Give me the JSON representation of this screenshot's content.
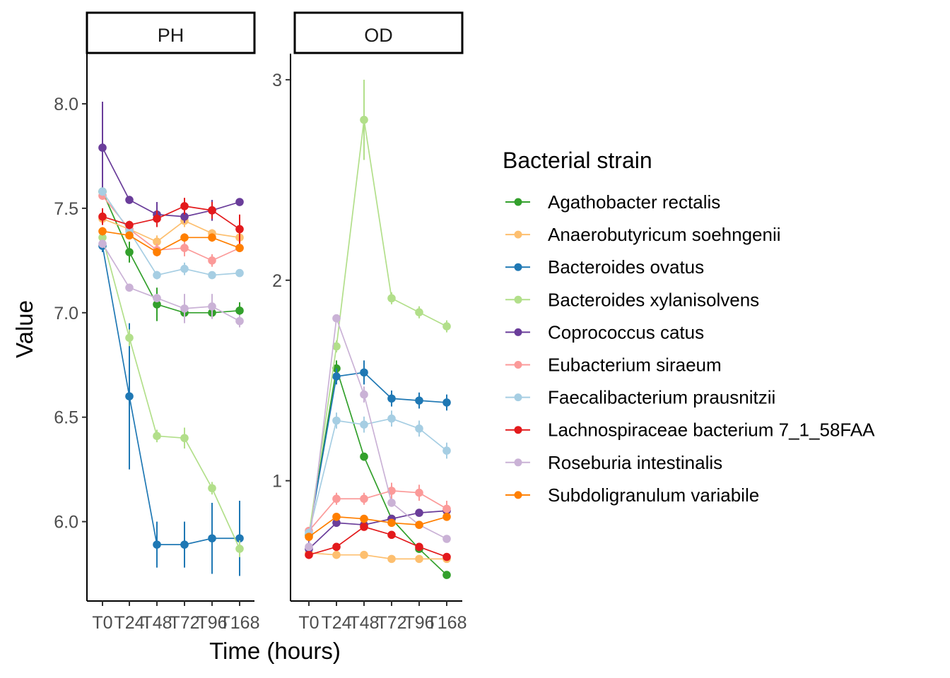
{
  "chart_data": {
    "type": "line",
    "xlabel": "Time (hours)",
    "ylabel": "Value",
    "legend": {
      "title": "Bacterial strain",
      "position": "right"
    },
    "grid": false,
    "x_categories": [
      "T0",
      "T24",
      "T48",
      "T72",
      "T96",
      "T168"
    ],
    "series": [
      {
        "name": "Agathobacter rectalis",
        "color": "#33a02c"
      },
      {
        "name": "Anaerobutyricum soehngenii",
        "color": "#fdbf6f"
      },
      {
        "name": "Bacteroides ovatus",
        "color": "#1f78b4"
      },
      {
        "name": "Bacteroides xylanisolvens",
        "color": "#b2df8a"
      },
      {
        "name": "Coprococcus catus",
        "color": "#6a3d9a"
      },
      {
        "name": "Eubacterium siraeum",
        "color": "#fb9a99"
      },
      {
        "name": "Faecalibacterium prausnitzii",
        "color": "#a6cee3"
      },
      {
        "name": "Lachnospiraceae bacterium 7_1_58FAA",
        "color": "#e31a1c"
      },
      {
        "name": "Roseburia intestinalis",
        "color": "#cab2d6"
      },
      {
        "name": "Subdoligranulum variabile",
        "color": "#ff7f00"
      }
    ],
    "panels": [
      {
        "strip_label": "PH",
        "ylim": [
          5.62,
          8.24
        ],
        "y_ticks": [
          6.0,
          6.5,
          7.0,
          7.5,
          8.0
        ],
        "y_tick_labels": [
          "6.0",
          "6.5",
          "7.0",
          "7.5",
          "8.0"
        ],
        "data": {
          "Agathobacter rectalis": {
            "values": [
              7.58,
              7.29,
              7.04,
              7.0,
              7.0,
              7.01
            ],
            "errors": [
              0.03,
              0.05,
              0.08,
              0.03,
              0.02,
              0.04
            ]
          },
          "Anaerobutyricum soehngenii": {
            "values": [
              7.45,
              7.4,
              7.34,
              7.44,
              7.38,
              7.36
            ],
            "errors": [
              0.02,
              0.02,
              0.03,
              0.03,
              0.02,
              0.02
            ]
          },
          "Bacteroides ovatus": {
            "values": [
              7.32,
              6.6,
              5.89,
              5.89,
              5.92,
              5.92
            ],
            "errors": [
              0.03,
              0.35,
              0.11,
              0.11,
              0.17,
              0.18
            ]
          },
          "Bacteroides xylanisolvens": {
            "values": [
              7.36,
              6.88,
              6.41,
              6.4,
              6.16,
              5.87
            ],
            "errors": [
              0.03,
              0.04,
              0.03,
              0.05,
              0.03,
              0.04
            ]
          },
          "Coprococcus catus": {
            "values": [
              7.79,
              7.54,
              7.47,
              7.46,
              7.49,
              7.53
            ],
            "errors": [
              0.22,
              0.01,
              0.06,
              0.03,
              0.05,
              0.01
            ]
          },
          "Eubacterium siraeum": {
            "values": [
              7.56,
              7.4,
              7.3,
              7.31,
              7.25,
              7.31
            ],
            "errors": [
              0.02,
              0.02,
              0.03,
              0.04,
              0.03,
              0.02
            ]
          },
          "Faecalibacterium prausnitzii": {
            "values": [
              7.58,
              7.39,
              7.18,
              7.21,
              7.18,
              7.19
            ],
            "errors": [
              0.02,
              0.02,
              0.02,
              0.03,
              0.01,
              0.01
            ]
          },
          "Lachnospiraceae bacterium 7_1_58FAA": {
            "values": [
              7.46,
              7.42,
              7.45,
              7.51,
              7.49,
              7.4
            ],
            "errors": [
              0.04,
              0.02,
              0.04,
              0.04,
              0.04,
              0.07
            ]
          },
          "Roseburia intestinalis": {
            "values": [
              7.33,
              7.12,
              7.07,
              7.02,
              7.03,
              6.96
            ],
            "errors": [
              0.02,
              0.01,
              0.02,
              0.07,
              0.06,
              0.03
            ]
          },
          "Subdoligranulum variabile": {
            "values": [
              7.39,
              7.37,
              7.29,
              7.36,
              7.36,
              7.31
            ],
            "errors": [
              0.02,
              0.01,
              0.02,
              0.02,
              0.02,
              0.02
            ]
          }
        }
      },
      {
        "strip_label": "OD",
        "ylim": [
          0.4,
          3.13
        ],
        "y_ticks": [
          1,
          2,
          3
        ],
        "y_tick_labels": [
          "1",
          "2",
          "3"
        ],
        "data": {
          "Agathobacter rectalis": {
            "values": [
              0.73,
              1.56,
              1.12,
              0.81,
              0.66,
              0.53
            ],
            "errors": [
              0.01,
              0.04,
              0.02,
              0.01,
              0.01,
              0.01
            ]
          },
          "Anaerobutyricum soehngenii": {
            "values": [
              0.64,
              0.63,
              0.63,
              0.61,
              0.61,
              0.61
            ],
            "errors": [
              0.01,
              0.01,
              0.01,
              0.01,
              0.01,
              0.01
            ]
          },
          "Bacteroides ovatus": {
            "values": [
              0.73,
              1.52,
              1.54,
              1.41,
              1.4,
              1.39
            ],
            "errors": [
              0.02,
              0.04,
              0.06,
              0.04,
              0.04,
              0.04
            ]
          },
          "Bacteroides xylanisolvens": {
            "values": [
              0.73,
              1.67,
              2.8,
              1.91,
              1.84,
              1.77
            ],
            "errors": [
              0.01,
              0.03,
              0.2,
              0.03,
              0.03,
              0.03
            ]
          },
          "Coprococcus catus": {
            "values": [
              0.66,
              0.79,
              0.78,
              0.81,
              0.84,
              0.85
            ],
            "errors": [
              0.04,
              0.02,
              0.02,
              0.01,
              0.01,
              0.01
            ]
          },
          "Eubacterium siraeum": {
            "values": [
              0.75,
              0.91,
              0.91,
              0.95,
              0.94,
              0.86
            ],
            "errors": [
              0.02,
              0.03,
              0.03,
              0.04,
              0.04,
              0.04
            ]
          },
          "Faecalibacterium prausnitzii": {
            "values": [
              0.74,
              1.3,
              1.28,
              1.31,
              1.26,
              1.15
            ],
            "errors": [
              0.02,
              0.04,
              0.04,
              0.04,
              0.04,
              0.04
            ]
          },
          "Lachnospiraceae bacterium 7_1_58FAA": {
            "values": [
              0.63,
              0.67,
              0.77,
              0.73,
              0.67,
              0.62
            ],
            "errors": [
              0.02,
              0.01,
              0.01,
              0.01,
              0.01,
              0.01
            ]
          },
          "Roseburia intestinalis": {
            "values": [
              0.67,
              1.81,
              1.43,
              0.89,
              0.78,
              0.71
            ],
            "errors": [
              0.01,
              0.01,
              0.04,
              0.02,
              0.01,
              0.01
            ]
          },
          "Subdoligranulum variabile": {
            "values": [
              0.72,
              0.82,
              0.81,
              0.79,
              0.78,
              0.82
            ],
            "errors": [
              0.02,
              0.01,
              0.01,
              0.01,
              0.01,
              0.01
            ]
          }
        }
      }
    ]
  }
}
